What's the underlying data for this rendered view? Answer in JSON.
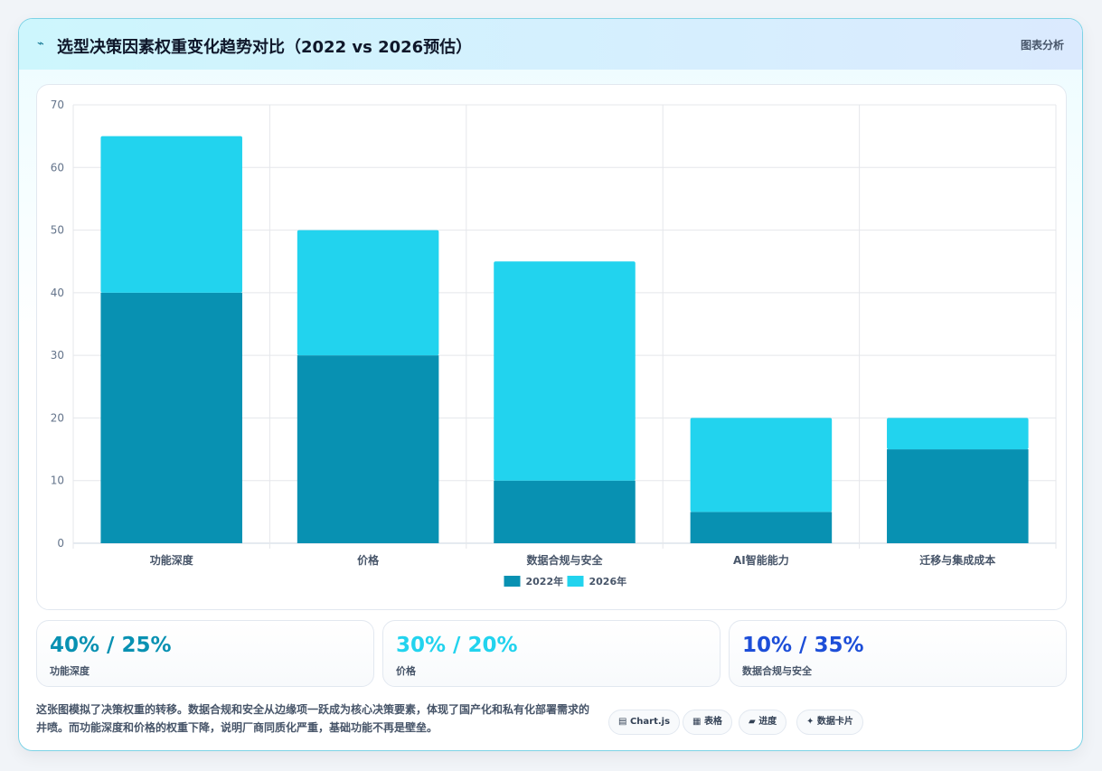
{
  "header": {
    "icon": "⌁",
    "title": "选型决策因素权重变化趋势对比（2022 vs 2026预估）",
    "tag": "图表分析"
  },
  "chart_data": {
    "type": "bar",
    "stacked": true,
    "categories": [
      "功能深度",
      "价格",
      "数据合规与安全",
      "AI智能能力",
      "迁移与集成成本"
    ],
    "series": [
      {
        "name": "2022年",
        "values": [
          40,
          30,
          10,
          5,
          15
        ],
        "color": "#0891b2"
      },
      {
        "name": "2026年",
        "values": [
          25,
          20,
          35,
          15,
          5
        ],
        "color": "#22d3ee"
      }
    ],
    "ylim": [
      0,
      70
    ],
    "yticks": [
      0,
      10,
      20,
      30,
      40,
      50,
      60,
      70
    ],
    "grid": true,
    "legend": "bottom"
  },
  "stats": [
    {
      "value": "40% / 25%",
      "label": "功能深度",
      "color": "#0891b2"
    },
    {
      "value": "30% / 20%",
      "label": "价格",
      "color": "#22d3ee"
    },
    {
      "value": "10% / 35%",
      "label": "数据合规与安全",
      "color": "#1d4ed8"
    }
  ],
  "description": "这张图模拟了决策权重的转移。数据合规和安全从边缘项一跃成为核心决策要素，体现了国产化和私有化部署需求的井喷。而功能深度和价格的权重下降，说明厂商同质化严重，基础功能不再是壁垒。",
  "pills": [
    {
      "icon": "▤",
      "label": "Chart.js"
    },
    {
      "icon": "▦",
      "label": "表格"
    },
    {
      "icon": "▰",
      "label": "进度"
    },
    {
      "icon": "✦",
      "label": "数据卡片"
    }
  ]
}
